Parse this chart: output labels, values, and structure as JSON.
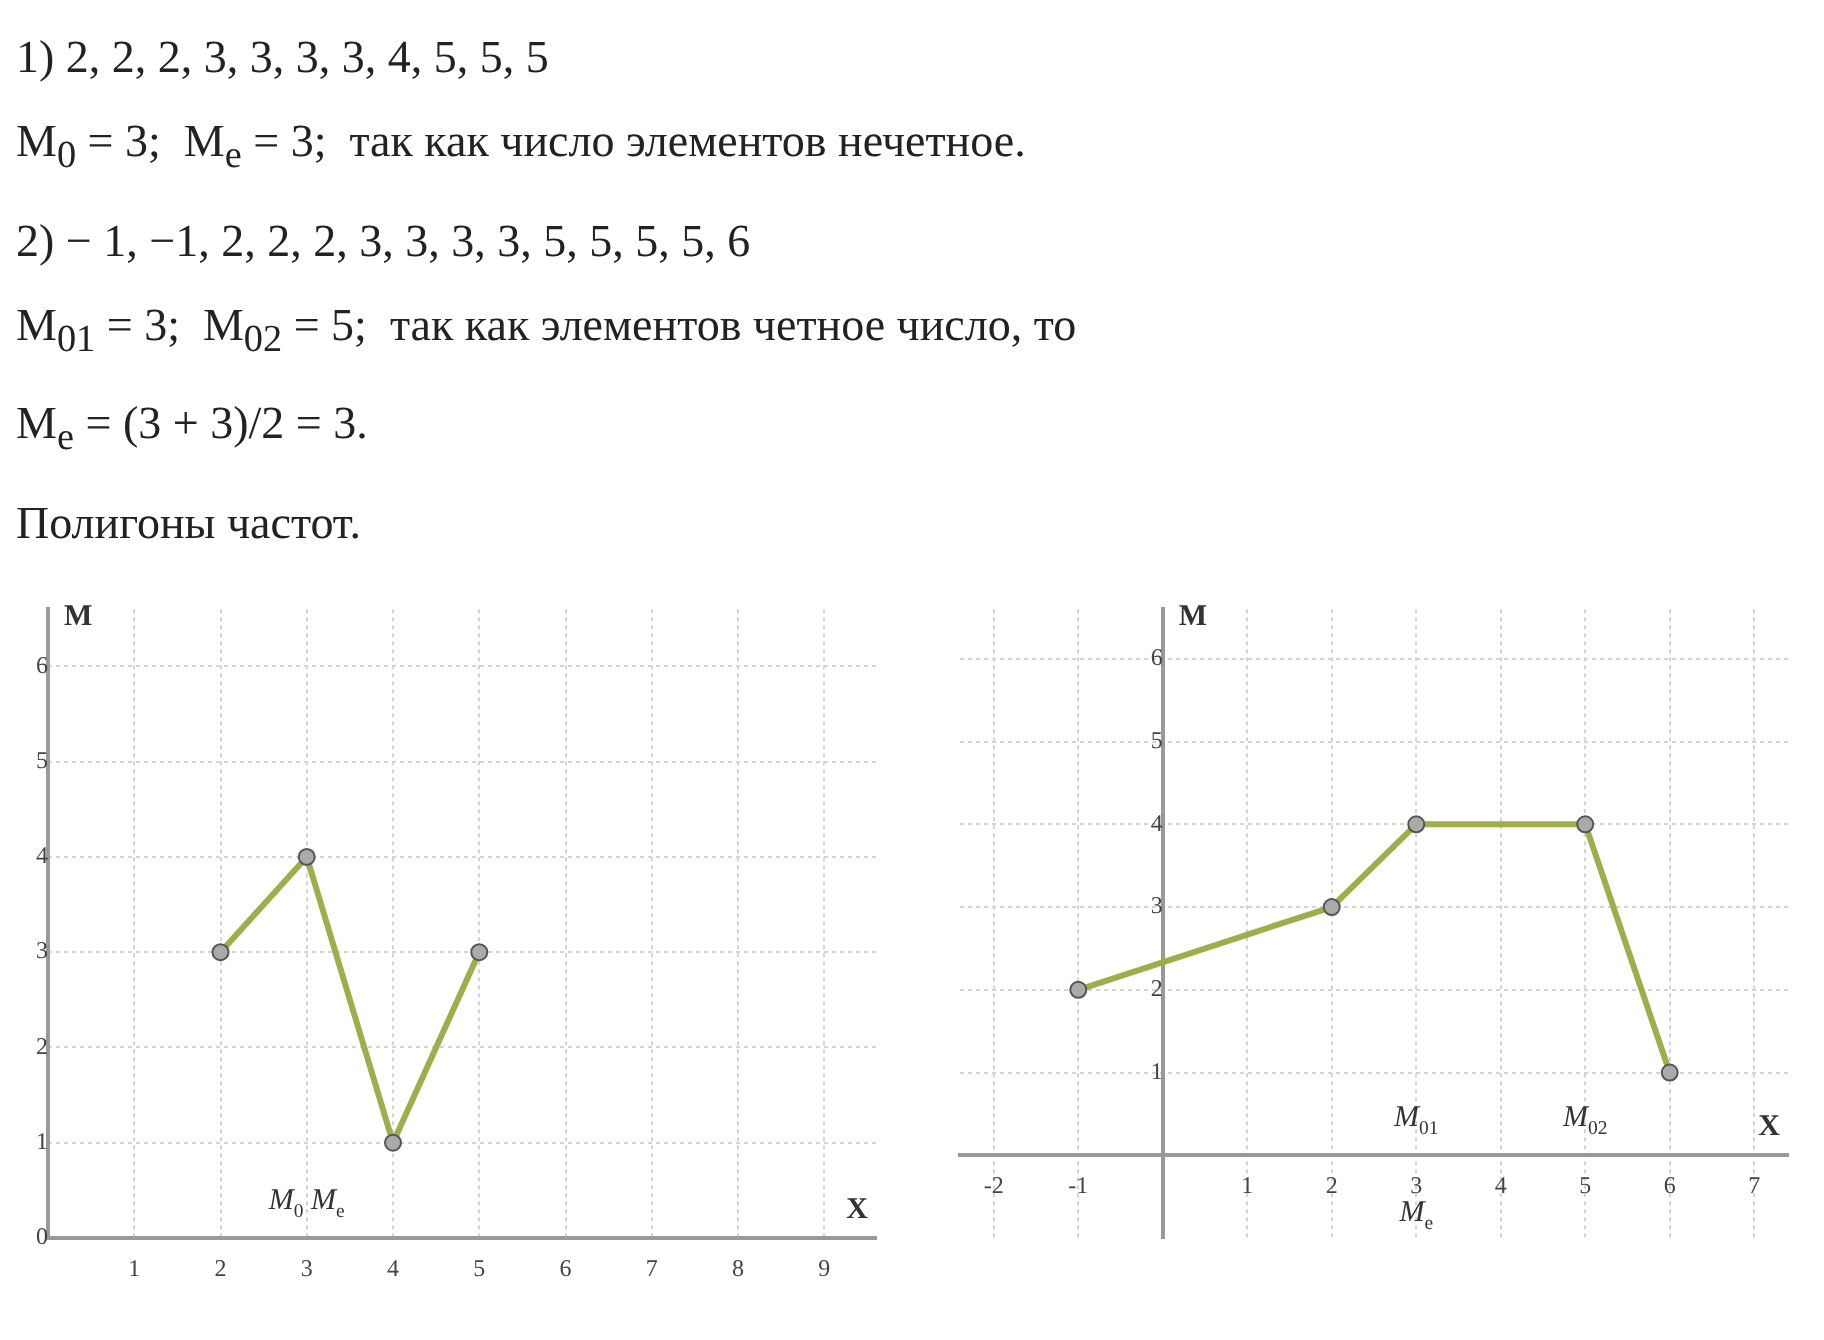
{
  "chart_data": [
    {
      "type": "line",
      "annotations": [
        "1) 2, 2, 2, 3, 3, 3, 3, 4, 5, 5, 5",
        "M$_{0}$ = 3;  M$_{e}$ = 3;  так как число элементов нечетное.",
        "2) − 1, −1, 2, 2, 2, 3, 3, 3, 3, 5, 5, 5, 5, 6",
        "M$_{01}$ = 3;  M$_{02}$ = 5;  так как элементов четное число, то",
        "M$_{e}$ = (3 + 3)/2 = 3.",
        "Полигоны частот.",
        "M$_{0}$ M$_{e}$"
      ],
      "xlabel": "X",
      "ylabel": "M",
      "x": [
        2,
        3,
        4,
        5
      ],
      "values": [
        3,
        4,
        1,
        3
      ],
      "color": "#9fae4a",
      "marker": "circle",
      "grid": true,
      "xlim": [
        0,
        9.6
      ],
      "ylim": [
        0,
        6.6
      ],
      "xticks": [
        1,
        2,
        3,
        4,
        5,
        6,
        7,
        8,
        9
      ],
      "yticks": [
        0,
        1,
        2,
        3,
        4,
        5,
        6
      ]
    },
    {
      "type": "line",
      "annotations": [
        "M$_{01}$",
        "M$_{02}$",
        "M$_{e}$"
      ],
      "xlabel": "X",
      "ylabel": "M",
      "x": [
        -1,
        2,
        3,
        5,
        6
      ],
      "values": [
        2,
        3,
        4,
        4,
        1
      ],
      "color": "#9fae4a",
      "marker": "circle",
      "grid": true,
      "xlim": [
        -2.4,
        7.4
      ],
      "ylim": [
        -1,
        6.6
      ],
      "xticks": [
        -2,
        -1,
        1,
        2,
        3,
        4,
        5,
        6,
        7
      ],
      "yticks": [
        1,
        2,
        3,
        4,
        5,
        6
      ]
    }
  ]
}
